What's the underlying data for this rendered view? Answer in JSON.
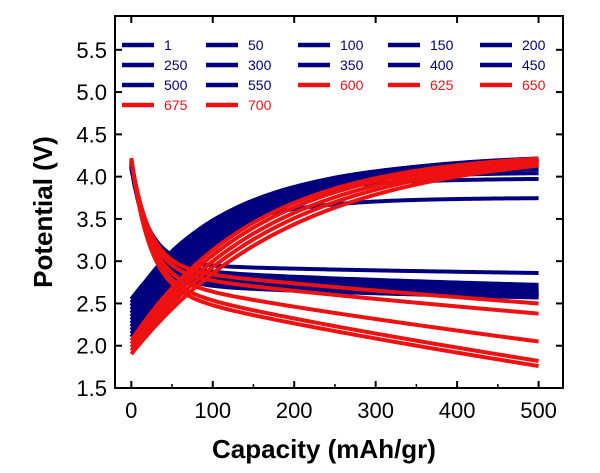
{
  "chart_data": {
    "type": "line",
    "title": "",
    "xlabel": "Capacity (mAh/gr)",
    "ylabel": "Potential (V)",
    "xlim": [
      -20,
      530
    ],
    "ylim": [
      1.5,
      5.9
    ],
    "xticks": [
      0,
      100,
      200,
      300,
      400,
      500
    ],
    "yticks": [
      1.5,
      2.0,
      2.5,
      3.0,
      3.5,
      4.0,
      4.5,
      5.0,
      5.5
    ],
    "grid": false,
    "legend_position": "top",
    "colors": {
      "blue": "#00007f",
      "red": "#ee1111"
    },
    "series": [
      {
        "name": "1",
        "color": "#00007f",
        "charge_end": 3.75,
        "discharge_end": 2.86
      },
      {
        "name": "50",
        "color": "#00007f",
        "charge_end": 3.98,
        "discharge_end": 2.72
      },
      {
        "name": "100",
        "color": "#00007f",
        "charge_end": 4.05,
        "discharge_end": 2.68
      },
      {
        "name": "150",
        "color": "#00007f",
        "charge_end": 4.1,
        "discharge_end": 2.66
      },
      {
        "name": "200",
        "color": "#00007f",
        "charge_end": 4.14,
        "discharge_end": 2.64
      },
      {
        "name": "250",
        "color": "#00007f",
        "charge_end": 4.17,
        "discharge_end": 2.63
      },
      {
        "name": "300",
        "color": "#00007f",
        "charge_end": 4.2,
        "discharge_end": 2.62
      },
      {
        "name": "350",
        "color": "#00007f",
        "charge_end": 4.22,
        "discharge_end": 2.61
      },
      {
        "name": "400",
        "color": "#00007f",
        "charge_end": 4.24,
        "discharge_end": 2.6
      },
      {
        "name": "450",
        "color": "#00007f",
        "charge_end": 4.26,
        "discharge_end": 2.59
      },
      {
        "name": "500",
        "color": "#00007f",
        "charge_end": 4.27,
        "discharge_end": 2.58
      },
      {
        "name": "550",
        "color": "#00007f",
        "charge_end": 4.28,
        "discharge_end": 2.57
      },
      {
        "name": "600",
        "color": "#ee1111",
        "charge_end": 4.3,
        "discharge_end": 2.5
      },
      {
        "name": "625",
        "color": "#ee1111",
        "charge_end": 4.31,
        "discharge_end": 2.38
      },
      {
        "name": "650",
        "color": "#ee1111",
        "charge_end": 4.31,
        "discharge_end": 2.05
      },
      {
        "name": "675",
        "color": "#ee1111",
        "charge_end": 4.32,
        "discharge_end": 1.82
      },
      {
        "name": "700",
        "color": "#ee1111",
        "charge_end": 4.33,
        "discharge_end": 1.76
      }
    ]
  }
}
